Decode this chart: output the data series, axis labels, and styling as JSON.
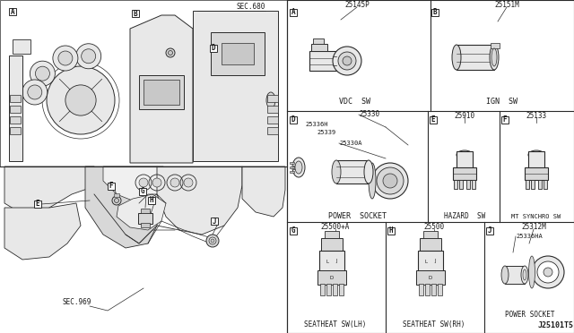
{
  "bg": "#f5f5f0",
  "white": "#ffffff",
  "lc": "#2a2a2a",
  "tc": "#1a1a1a",
  "gray1": "#e8e8e8",
  "gray2": "#d8d8d8",
  "gray3": "#c8c8c8",
  "sec_top": "SEC.680",
  "sec_bottom": "SEC.969",
  "diagram_ref": "J25101T5",
  "parts": {
    "A": {
      "num": "25145P",
      "name": "VDC  SW"
    },
    "B": {
      "num": "25151M",
      "name": "IGN  SW"
    },
    "D": {
      "num": "25330",
      "name": "POWER  SOCKET",
      "subs": [
        "25336H",
        "25339",
        "25330A"
      ]
    },
    "E": {
      "num": "25910",
      "name": "HAZARD  SW"
    },
    "F": {
      "num": "25133",
      "name": "MT SYNCHRO SW"
    },
    "G": {
      "num": "25500+A",
      "name": "SEATHEAT SW(LH)"
    },
    "H": {
      "num": "25500",
      "name": "SEATHEAT SW(RH)"
    },
    "J": {
      "num": "25312M",
      "name": "POWER SOCKET",
      "sub2": "25336HA"
    }
  }
}
